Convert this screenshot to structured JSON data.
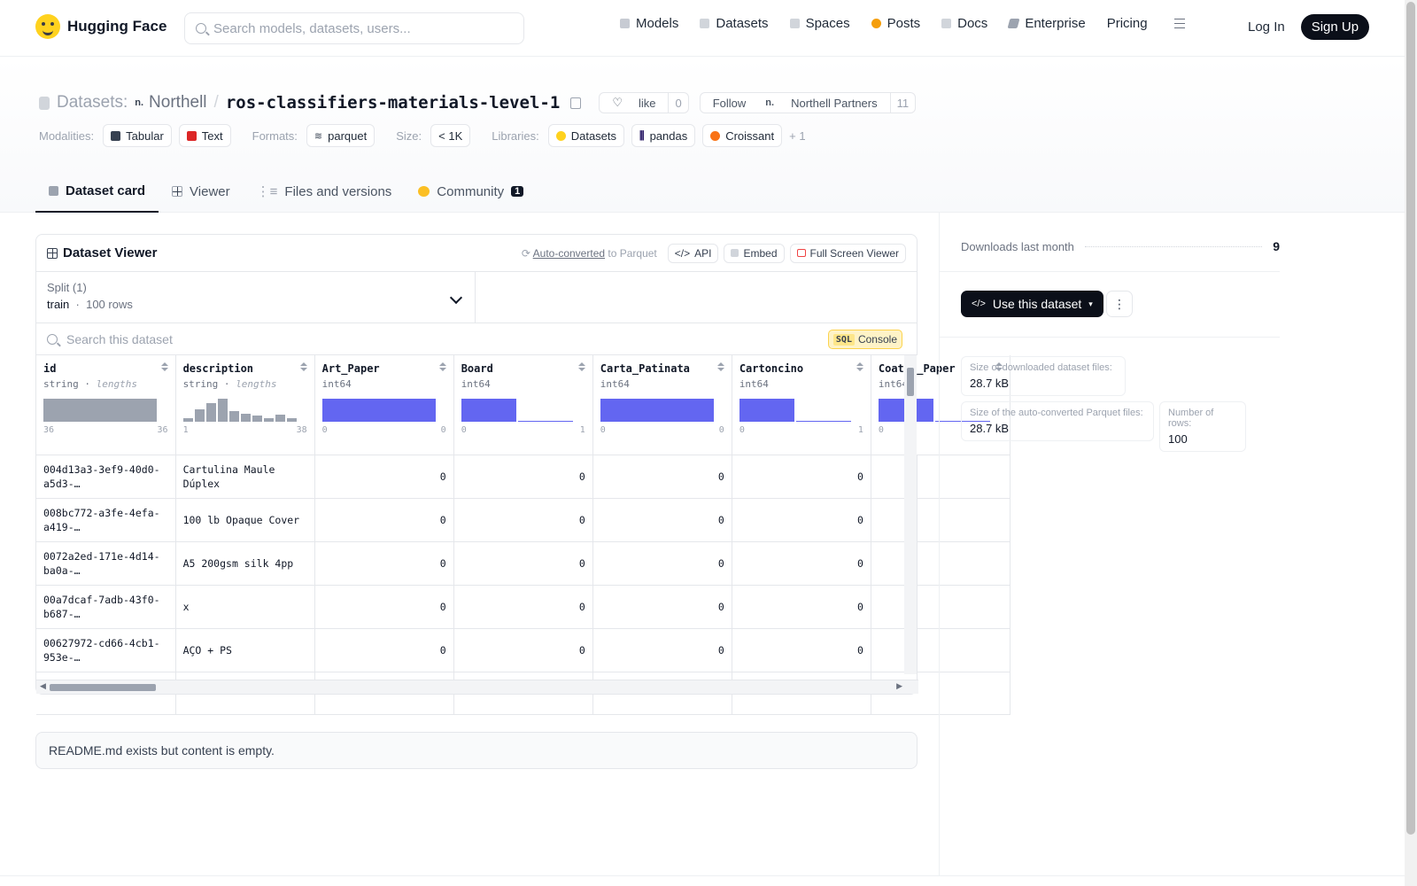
{
  "nav": {
    "brand": "Hugging Face",
    "search_placeholder": "Search models, datasets, users...",
    "links": [
      "Models",
      "Datasets",
      "Spaces",
      "Posts",
      "Docs",
      "Enterprise",
      "Pricing"
    ],
    "login": "Log In",
    "signup": "Sign Up"
  },
  "header": {
    "section": "Datasets:",
    "org": "Northell",
    "dataset": "ros-classifiers-materials-level-1",
    "like_label": "like",
    "like_count": "0",
    "follow_label": "Follow",
    "follow_org": "Northell Partners",
    "follow_count": "11",
    "modalities_label": "Modalities:",
    "modalities": [
      "Tabular",
      "Text"
    ],
    "formats_label": "Formats:",
    "formats": [
      "parquet"
    ],
    "size_label": "Size:",
    "size": "< 1K",
    "libraries_label": "Libraries:",
    "libraries": [
      "Datasets",
      "pandas",
      "Croissant"
    ],
    "libraries_more": "+ 1",
    "tabs": [
      "Dataset card",
      "Viewer",
      "Files and versions",
      "Community"
    ],
    "community_badge": "1"
  },
  "viewer": {
    "title": "Dataset Viewer",
    "auto_converted": "Auto-converted",
    "to_parquet": "to Parquet",
    "api": "API",
    "embed": "Embed",
    "full_screen": "Full Screen Viewer",
    "split_label": "Split (1)",
    "split_value": "train",
    "split_rows": "100 rows",
    "search_placeholder": "Search this dataset",
    "sql": "SQL",
    "console": "Console",
    "columns": [
      {
        "name": "id",
        "type": "string",
        "sub": "lengths",
        "min": "36",
        "max": "36",
        "hist": [
          1.0
        ],
        "color": "#9ca3af"
      },
      {
        "name": "description",
        "type": "string",
        "sub": "lengths",
        "min": "1",
        "max": "38",
        "hist": [
          0.15,
          0.55,
          0.8,
          1.0,
          0.45,
          0.35,
          0.25,
          0.15,
          0.3,
          0.15
        ],
        "color": "#9ca3af"
      },
      {
        "name": "Art_Paper",
        "type": "int64",
        "sub": "",
        "min": "0",
        "max": "0",
        "hist": [
          1.0
        ],
        "color": "#6366f1"
      },
      {
        "name": "Board",
        "type": "int64",
        "sub": "",
        "min": "0",
        "max": "1",
        "hist": [
          1.0,
          0.0
        ],
        "color": "#6366f1"
      },
      {
        "name": "Carta_Patinata",
        "type": "int64",
        "sub": "",
        "min": "0",
        "max": "0",
        "hist": [
          1.0
        ],
        "color": "#6366f1"
      },
      {
        "name": "Cartoncino",
        "type": "int64",
        "sub": "",
        "min": "0",
        "max": "1",
        "hist": [
          1.0,
          0.0
        ],
        "color": "#6366f1"
      },
      {
        "name": "Coated_Paper",
        "type": "int64",
        "sub": "",
        "min": "0",
        "max": "",
        "hist": [
          1.0,
          0.0
        ],
        "color": "#6366f1"
      }
    ],
    "rows": [
      {
        "id": "004d13a3-3ef9-40d0-a5d3-…",
        "description": "Cartulina Maule Dúplex",
        "values": [
          "0",
          "0",
          "0",
          "0",
          ""
        ]
      },
      {
        "id": "008bc772-a3fe-4efa-a419-…",
        "description": "100 lb Opaque Cover",
        "values": [
          "0",
          "0",
          "0",
          "0",
          ""
        ]
      },
      {
        "id": "0072a2ed-171e-4d14-ba0a-…",
        "description": "A5 200gsm silk 4pp",
        "values": [
          "0",
          "0",
          "0",
          "0",
          ""
        ]
      },
      {
        "id": "00a7dcaf-7adb-43f0-b687-…",
        "description": "x",
        "values": [
          "0",
          "0",
          "0",
          "0",
          ""
        ]
      },
      {
        "id": "00627972-cd66-4cb1-953e-…",
        "description": "AÇO + PS",
        "values": [
          "0",
          "0",
          "0",
          "0",
          ""
        ]
      }
    ]
  },
  "readme": "README.md exists but content is empty.",
  "sidebar": {
    "downloads_label": "Downloads last month",
    "downloads_value": "9",
    "use_dataset": "Use this dataset",
    "size_download_label": "Size of downloaded dataset files:",
    "size_download_value": "28.7 kB",
    "size_parquet_label": "Size of the auto-converted Parquet files:",
    "size_parquet_value": "28.7 kB",
    "num_rows_label": "Number of rows:",
    "num_rows_value": "100"
  },
  "colors": {
    "accent": "#6366f1",
    "dark": "#0b0f19",
    "hf_yellow": "#ffd21e"
  }
}
